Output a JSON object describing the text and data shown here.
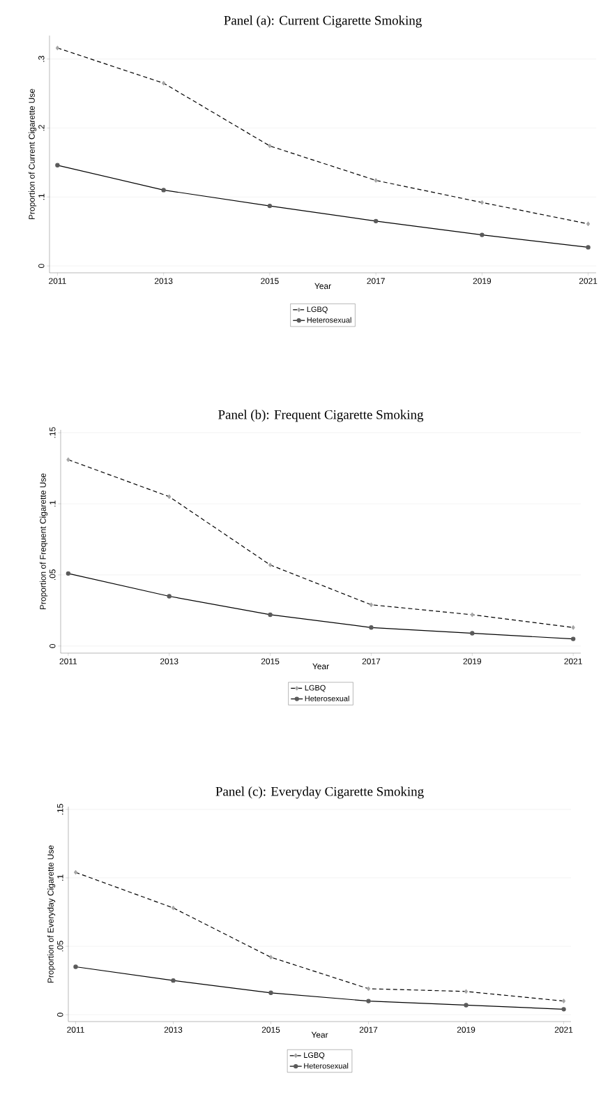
{
  "chart_data": [
    {
      "type": "line",
      "title": "Panel (a): Current Cigarette Smoking",
      "xlabel": "Year",
      "ylabel": "Proportion of Current Cigarette Use",
      "x": [
        2011,
        2013,
        2015,
        2017,
        2019,
        2021
      ],
      "series": [
        {
          "name": "LGBQ",
          "color": "#a6a6a6",
          "marker": "diamond",
          "line_style": "dashed",
          "values": [
            0.316,
            0.265,
            0.174,
            0.124,
            0.092,
            0.061
          ]
        },
        {
          "name": "Heterosexual",
          "color": "#5a5a5a",
          "marker": "circle",
          "line_style": "solid",
          "values": [
            0.146,
            0.11,
            0.087,
            0.065,
            0.045,
            0.027
          ]
        }
      ],
      "xlim": [
        2010.85,
        2021.15
      ],
      "xticks": [
        2011,
        2013,
        2015,
        2017,
        2019,
        2021
      ],
      "ylim": [
        -0.01,
        0.334
      ],
      "yticks": [
        0,
        {
          "value": 0.1,
          "label": ".1"
        },
        {
          "value": 0.2,
          "label": ".2"
        },
        {
          "value": 0.3,
          "label": ".3"
        }
      ],
      "grid": "y",
      "legend": "bottom"
    },
    {
      "type": "line",
      "title": "Panel (b): Frequent Cigarette Smoking",
      "xlabel": "Year",
      "ylabel": "Proportion of Frequent Cigarette Use",
      "x": [
        2011,
        2013,
        2015,
        2017,
        2019,
        2021
      ],
      "series": [
        {
          "name": "LGBQ",
          "color": "#a6a6a6",
          "marker": "diamond",
          "line_style": "dashed",
          "values": [
            0.131,
            0.105,
            0.057,
            0.029,
            0.022,
            0.013
          ]
        },
        {
          "name": "Heterosexual",
          "color": "#5a5a5a",
          "marker": "circle",
          "line_style": "solid",
          "values": [
            0.051,
            0.035,
            0.022,
            0.013,
            0.009,
            0.005
          ]
        }
      ],
      "xlim": [
        2010.85,
        2021.15
      ],
      "xticks": [
        2011,
        2013,
        2015,
        2017,
        2019,
        2021
      ],
      "ylim": [
        -0.005,
        0.152
      ],
      "yticks": [
        0,
        {
          "value": 0.05,
          "label": ".05"
        },
        {
          "value": 0.1,
          "label": ".1"
        },
        {
          "value": 0.15,
          "label": ".15"
        }
      ],
      "grid": "y",
      "legend": "bottom"
    },
    {
      "type": "line",
      "title": "Panel (c): Everyday Cigarette Smoking",
      "xlabel": "Year",
      "ylabel": "Proportion of Everyday Cigarette Use",
      "x": [
        2011,
        2013,
        2015,
        2017,
        2019,
        2021
      ],
      "series": [
        {
          "name": "LGBQ",
          "color": "#a6a6a6",
          "marker": "diamond",
          "line_style": "dashed",
          "values": [
            0.104,
            0.078,
            0.042,
            0.019,
            0.017,
            0.01
          ]
        },
        {
          "name": "Heterosexual",
          "color": "#5a5a5a",
          "marker": "circle",
          "line_style": "solid",
          "values": [
            0.035,
            0.025,
            0.016,
            0.01,
            0.007,
            0.004
          ]
        }
      ],
      "xlim": [
        2010.85,
        2021.15
      ],
      "xticks": [
        2011,
        2013,
        2015,
        2017,
        2019,
        2021
      ],
      "ylim": [
        -0.005,
        0.152
      ],
      "yticks": [
        0,
        {
          "value": 0.05,
          "label": ".05"
        },
        {
          "value": 0.1,
          "label": ".1"
        },
        {
          "value": 0.15,
          "label": ".15"
        }
      ],
      "grid": "y",
      "legend": "bottom"
    }
  ]
}
